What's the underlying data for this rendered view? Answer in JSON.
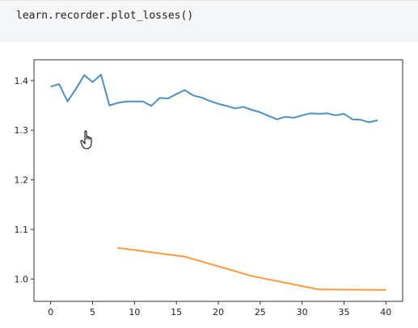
{
  "code_cell": {
    "text": "learn.recorder.plot_losses()"
  },
  "chart_data": {
    "type": "line",
    "xlim": [
      -2,
      42
    ],
    "ylim": [
      0.955,
      1.442
    ],
    "xticks": [
      0,
      5,
      10,
      15,
      20,
      25,
      30,
      35,
      40
    ],
    "yticks": [
      1.0,
      1.1,
      1.2,
      1.3,
      1.4
    ],
    "ytick_labels": [
      "1.0",
      "1.1",
      "1.2",
      "1.3",
      "1.4"
    ],
    "grid": false,
    "series": [
      {
        "color": "#4a90c2",
        "x": [
          0,
          1,
          2,
          3,
          4,
          5,
          6,
          7,
          8,
          9,
          10,
          11,
          12,
          13,
          14,
          15,
          16,
          17,
          18,
          19,
          20,
          21,
          22,
          23,
          24,
          25,
          26,
          27,
          28,
          29,
          30,
          31,
          32,
          33,
          34,
          35,
          36,
          37,
          38,
          39
        ],
        "y": [
          1.388,
          1.393,
          1.358,
          1.383,
          1.411,
          1.397,
          1.412,
          1.35,
          1.355,
          1.358,
          1.358,
          1.358,
          1.349,
          1.365,
          1.364,
          1.373,
          1.381,
          1.37,
          1.366,
          1.359,
          1.353,
          1.349,
          1.344,
          1.347,
          1.341,
          1.336,
          1.329,
          1.322,
          1.327,
          1.325,
          1.33,
          1.334,
          1.333,
          1.334,
          1.33,
          1.333,
          1.322,
          1.321,
          1.316,
          1.32
        ]
      },
      {
        "color": "#ff9a3c",
        "x": [
          8,
          16,
          24,
          32,
          40
        ],
        "y": [
          1.063,
          1.045,
          1.006,
          0.979,
          0.978
        ]
      }
    ]
  },
  "cursor": {
    "icon": "hand-pointer-icon"
  }
}
